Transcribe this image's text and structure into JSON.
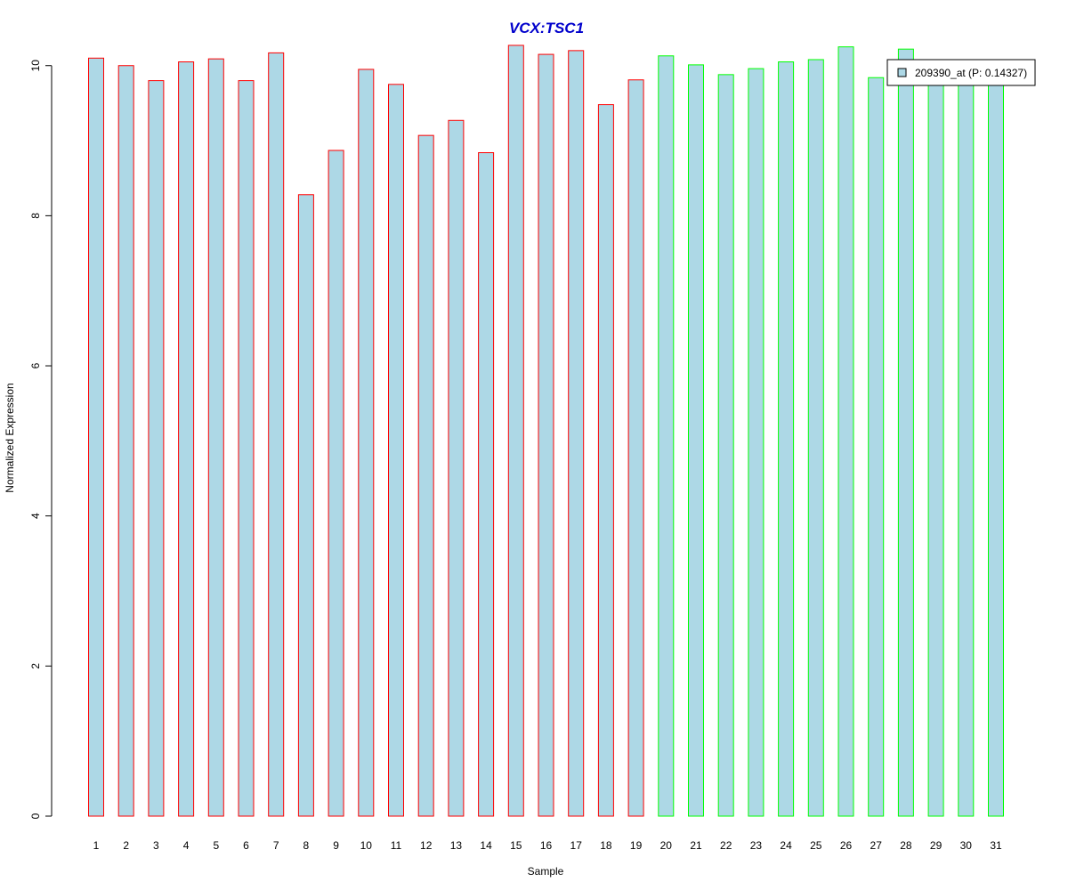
{
  "chart_data": {
    "type": "bar",
    "title": "VCX:TSC1",
    "xlabel": "Sample",
    "ylabel": "Normalized Expression",
    "ylim": [
      0,
      10.4
    ],
    "yticks": [
      0,
      2,
      4,
      6,
      8,
      10
    ],
    "categories": [
      "1",
      "2",
      "3",
      "4",
      "5",
      "6",
      "7",
      "8",
      "9",
      "10",
      "11",
      "12",
      "13",
      "14",
      "15",
      "16",
      "17",
      "18",
      "19",
      "20",
      "21",
      "22",
      "23",
      "24",
      "25",
      "26",
      "27",
      "28",
      "29",
      "30",
      "31"
    ],
    "values": [
      10.1,
      10.0,
      9.8,
      10.05,
      10.09,
      9.8,
      10.17,
      8.28,
      8.87,
      9.95,
      9.75,
      9.07,
      9.27,
      8.84,
      10.27,
      10.15,
      10.2,
      9.48,
      9.81,
      10.13,
      10.01,
      9.88,
      9.96,
      10.05,
      10.08,
      10.25,
      9.84,
      10.22,
      9.85,
      9.87,
      9.89
    ],
    "groups": [
      0,
      0,
      0,
      0,
      0,
      0,
      0,
      0,
      0,
      0,
      0,
      0,
      0,
      0,
      0,
      0,
      0,
      0,
      0,
      1,
      1,
      1,
      1,
      1,
      1,
      1,
      1,
      1,
      1,
      1,
      1
    ],
    "series": [
      {
        "name": "209390_at (P: 0.14327)",
        "fill": "#add8e6"
      }
    ],
    "group_border_colors": [
      "#ff0000",
      "#00ff00"
    ],
    "title_color": "#0000cc",
    "grid": false,
    "legend_position": "top-right"
  }
}
